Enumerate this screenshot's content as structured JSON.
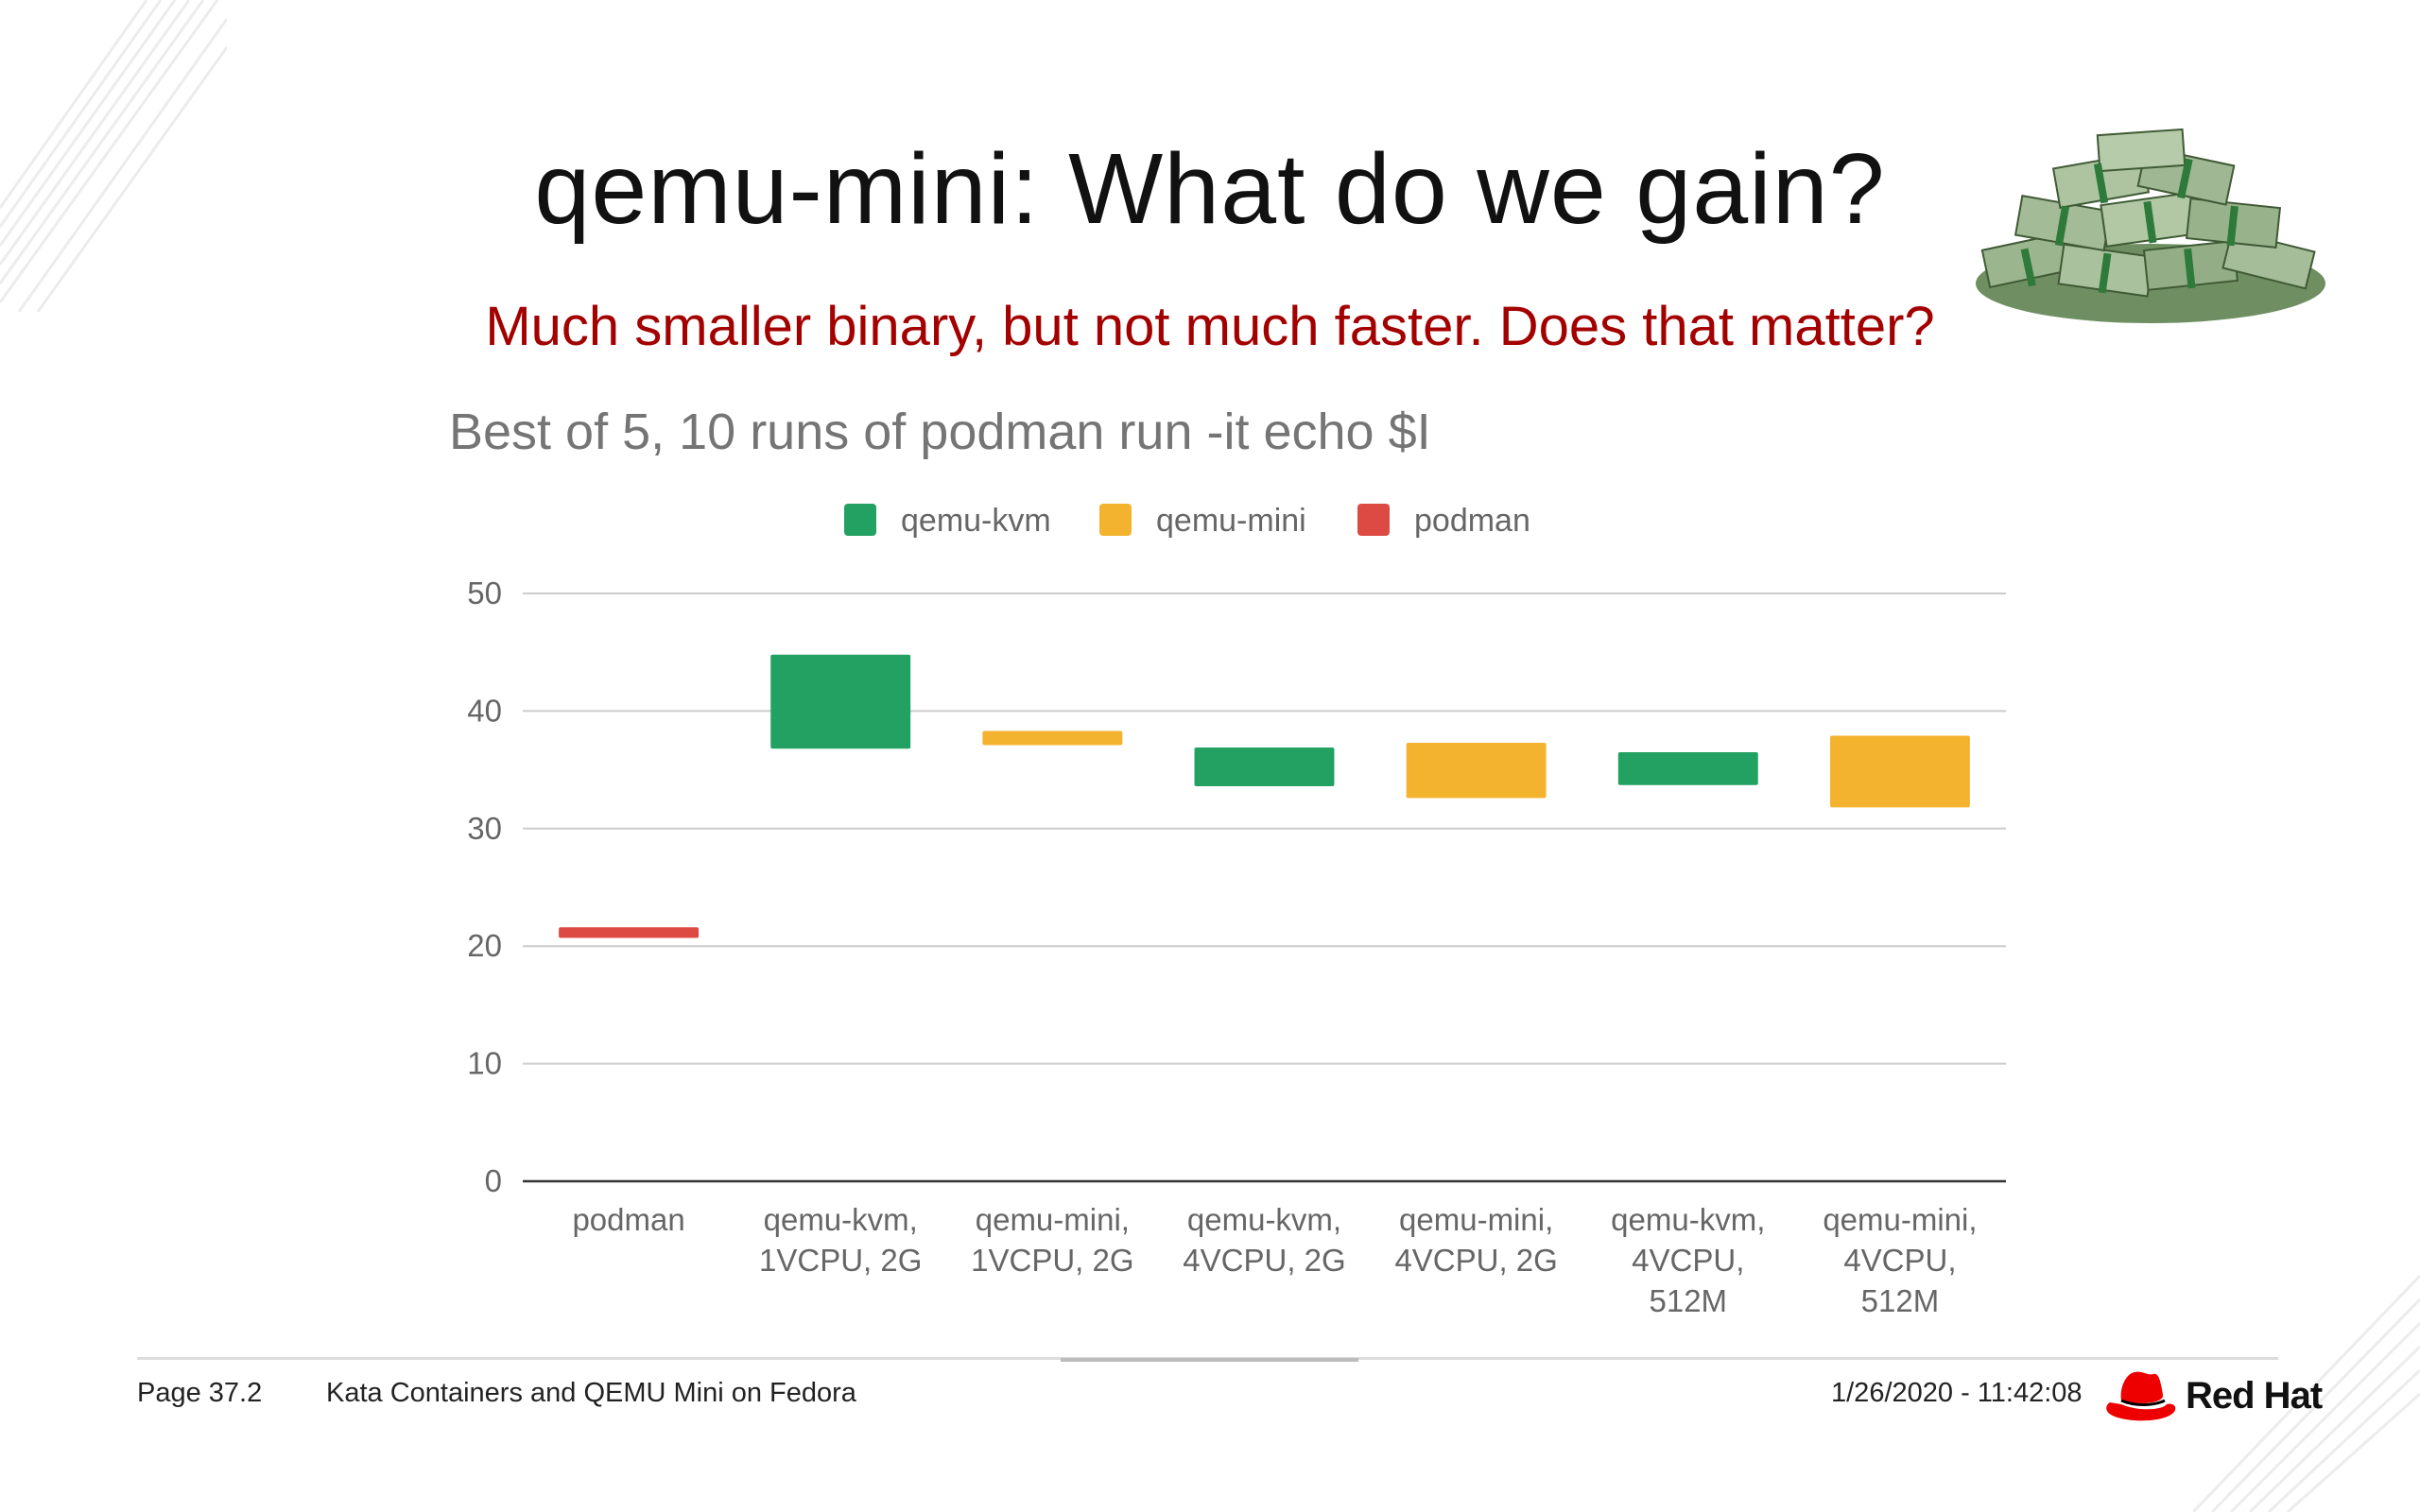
{
  "slide": {
    "title": "qemu-mini: What do we gain?",
    "subtitle": "Much smaller binary, but not much faster. Does that matter?"
  },
  "footer": {
    "page": "Page 37.2",
    "presentation": "Kata Containers and QEMU Mini on Fedora",
    "timestamp": "1/26/2020 - 11:42:08",
    "brand": "Red Hat"
  },
  "images": {
    "money_pile": "stack-of-dollar-bills-image",
    "logo": "red-hat-fedora-icon"
  },
  "chart_data": {
    "type": "bar",
    "title": "Best of 5, 10 runs of podman run -it echo $I",
    "xlabel": "",
    "ylabel": "",
    "ylim": [
      0,
      50
    ],
    "yticks": [
      0,
      10,
      20,
      30,
      40,
      50
    ],
    "grid": true,
    "legend_position": "top-center",
    "categories": [
      [
        "podman"
      ],
      [
        "qemu-kvm,",
        "1VCPU, 2G"
      ],
      [
        "qemu-mini,",
        "1VCPU, 2G"
      ],
      [
        "qemu-kvm,",
        "4VCPU, 2G"
      ],
      [
        "qemu-mini,",
        "4VCPU, 2G"
      ],
      [
        "qemu-kvm,",
        "4VCPU,",
        "512M"
      ],
      [
        "qemu-mini,",
        "4VCPU,",
        "512M"
      ]
    ],
    "series": [
      {
        "name": "qemu-kvm",
        "color": "#22a162"
      },
      {
        "name": "qemu-mini",
        "color": "#f4b32e"
      },
      {
        "name": "podman",
        "color": "#dc4a43"
      }
    ],
    "floating_bars": [
      {
        "category": 0,
        "series": "podman",
        "low": 20.7,
        "high": 21.6
      },
      {
        "category": 1,
        "series": "qemu-kvm",
        "low": 36.8,
        "high": 44.8
      },
      {
        "category": 2,
        "series": "qemu-mini",
        "low": 37.1,
        "high": 38.3
      },
      {
        "category": 3,
        "series": "qemu-kvm",
        "low": 33.6,
        "high": 36.9
      },
      {
        "category": 4,
        "series": "qemu-mini",
        "low": 32.6,
        "high": 37.3
      },
      {
        "category": 5,
        "series": "qemu-kvm",
        "low": 33.7,
        "high": 36.5
      },
      {
        "category": 6,
        "series": "qemu-mini",
        "low": 31.8,
        "high": 37.9
      }
    ]
  }
}
